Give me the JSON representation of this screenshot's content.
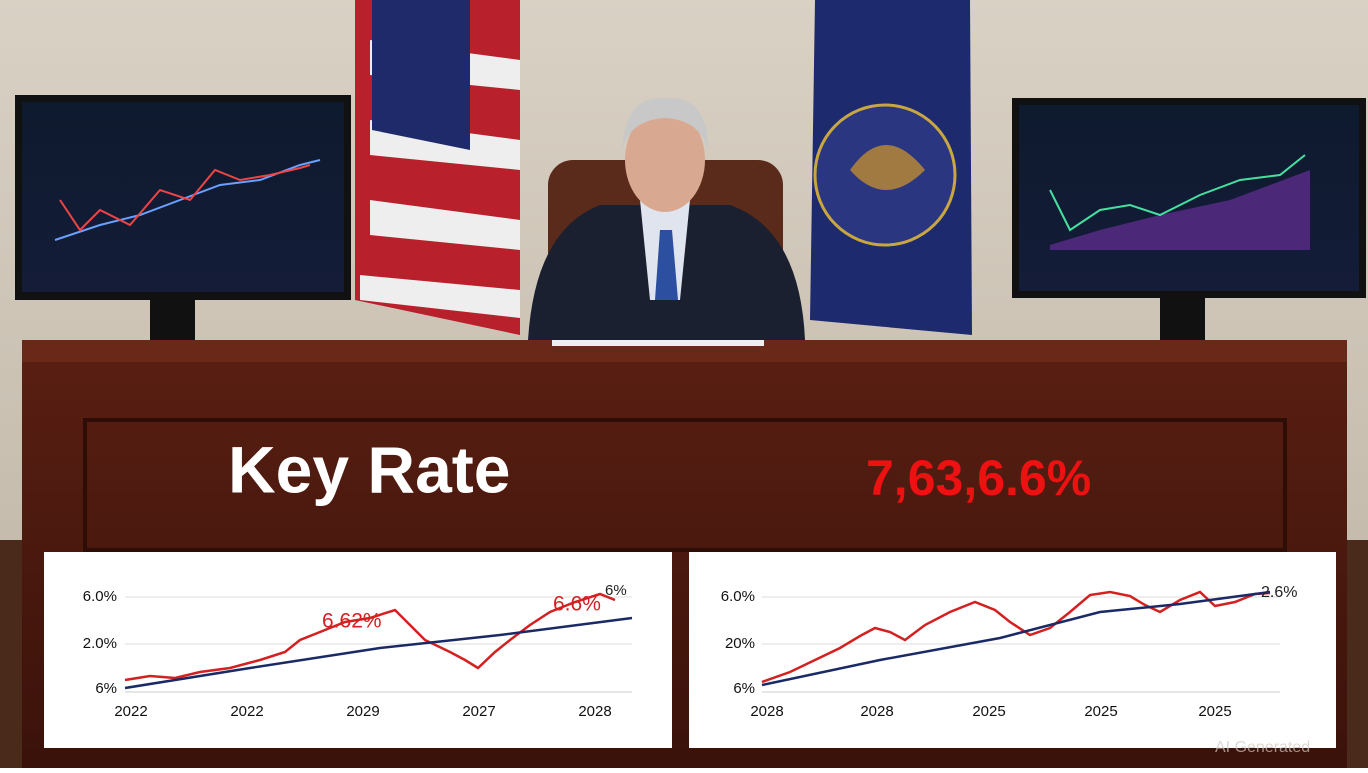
{
  "headline": {
    "title": "Key Rate",
    "rate": "7,63,6.6%"
  },
  "panels": [
    {
      "y_labels": [
        "6.0%",
        "2.0%",
        "6%"
      ],
      "x_labels": [
        "2022",
        "2022",
        "2029",
        "2027",
        "2028"
      ],
      "annotations": [
        "6.62%",
        "6.6%",
        "6%"
      ]
    },
    {
      "y_labels": [
        "6.0%",
        "20%",
        "6%"
      ],
      "x_labels": [
        "2028",
        "2028",
        "2025",
        "2025",
        "2025"
      ],
      "annotations": [
        "2.6%"
      ]
    }
  ],
  "watermark": "AI Generated"
}
